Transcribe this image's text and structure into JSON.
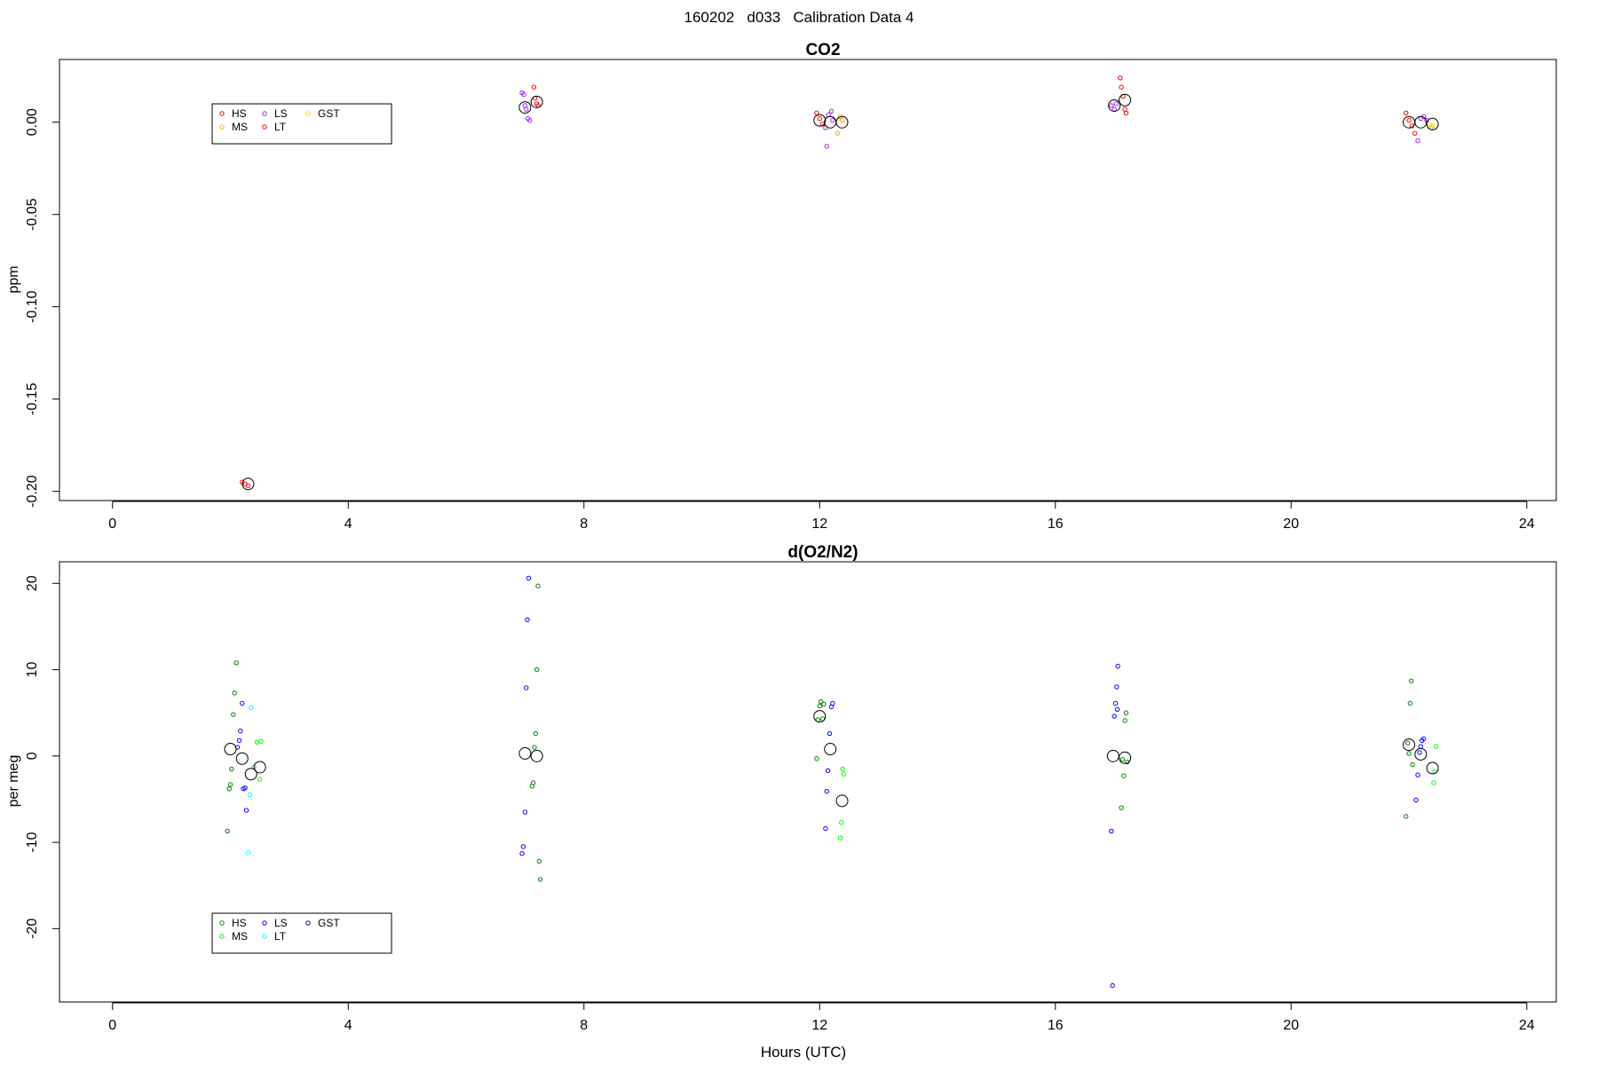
{
  "page_title": "160202   d033   Calibration Data 4",
  "xlabel": "Hours (UTC)",
  "colors": {
    "co2": {
      "HS": "#ff0000",
      "MS": "#ffa500",
      "LS": "#a020f0",
      "LT": "#ff0000",
      "GST": "#ffd700"
    },
    "o2": {
      "HS": "#008000",
      "MS": "#00ff00",
      "LS": "#0000ff",
      "LT": "#00ffff",
      "GST": "#0000a0"
    }
  },
  "chart_data": [
    {
      "type": "scatter",
      "title": "CO2",
      "ylabel": "ppm",
      "xlabel": "",
      "xlim": [
        -0.9,
        24.5
      ],
      "ylim": [
        -0.205,
        0.034
      ],
      "xticks": [
        0,
        4,
        8,
        12,
        16,
        20,
        24
      ],
      "yticks": [
        0.0,
        -0.05,
        -0.1,
        -0.15,
        -0.2
      ],
      "ytick_labels": [
        "0.00",
        "-0.05",
        "-0.10",
        "-0.15",
        "-0.20"
      ],
      "legend": {
        "position": "top-left",
        "entries": [
          "HS",
          "MS",
          "LS",
          "LT",
          "GST"
        ]
      },
      "points": [
        {
          "series": "HS",
          "x": 2.2,
          "y": -0.195
        },
        {
          "series": "HS",
          "x": 2.25,
          "y": -0.196
        },
        {
          "series": "HS",
          "x": 2.3,
          "y": -0.197
        },
        {
          "series": "LS",
          "x": 6.95,
          "y": 0.016
        },
        {
          "series": "LS",
          "x": 6.98,
          "y": 0.015
        },
        {
          "series": "LS",
          "x": 7.0,
          "y": 0.009
        },
        {
          "series": "LS",
          "x": 7.02,
          "y": 0.007
        },
        {
          "series": "LS",
          "x": 7.05,
          "y": 0.002
        },
        {
          "series": "LS",
          "x": 7.08,
          "y": 0.001
        },
        {
          "series": "HS",
          "x": 7.15,
          "y": 0.019
        },
        {
          "series": "HS",
          "x": 7.17,
          "y": 0.013
        },
        {
          "series": "HS",
          "x": 7.2,
          "y": 0.01
        },
        {
          "series": "HS",
          "x": 7.22,
          "y": 0.009
        },
        {
          "series": "HS",
          "x": 11.95,
          "y": 0.005
        },
        {
          "series": "HS",
          "x": 12.0,
          "y": 0.002
        },
        {
          "series": "HS",
          "x": 12.05,
          "y": -0.001
        },
        {
          "series": "LS",
          "x": 12.1,
          "y": -0.003
        },
        {
          "series": "LS",
          "x": 12.12,
          "y": -0.013
        },
        {
          "series": "LS",
          "x": 12.15,
          "y": 0.004
        },
        {
          "series": "LS",
          "x": 12.2,
          "y": 0.006
        },
        {
          "series": "LS",
          "x": 12.22,
          "y": 0.001
        },
        {
          "series": "MS",
          "x": 12.3,
          "y": -0.006
        },
        {
          "series": "MS",
          "x": 12.35,
          "y": 0.003
        },
        {
          "series": "MS",
          "x": 12.38,
          "y": 0.001
        },
        {
          "series": "LS",
          "x": 16.95,
          "y": 0.009
        },
        {
          "series": "LS",
          "x": 17.0,
          "y": 0.007
        },
        {
          "series": "LS",
          "x": 17.03,
          "y": 0.01
        },
        {
          "series": "HS",
          "x": 17.1,
          "y": 0.024
        },
        {
          "series": "HS",
          "x": 17.12,
          "y": 0.019
        },
        {
          "series": "HS",
          "x": 17.15,
          "y": 0.014
        },
        {
          "series": "HS",
          "x": 17.18,
          "y": 0.007
        },
        {
          "series": "HS",
          "x": 17.2,
          "y": 0.005
        },
        {
          "series": "HS",
          "x": 21.95,
          "y": 0.005
        },
        {
          "series": "HS",
          "x": 22.0,
          "y": 0.001
        },
        {
          "series": "HS",
          "x": 22.05,
          "y": -0.002
        },
        {
          "series": "HS",
          "x": 22.1,
          "y": -0.006
        },
        {
          "series": "LS",
          "x": 22.15,
          "y": -0.01
        },
        {
          "series": "LS",
          "x": 22.2,
          "y": 0.002
        },
        {
          "series": "LS",
          "x": 22.25,
          "y": 0.003
        },
        {
          "series": "LS",
          "x": 22.3,
          "y": 0.001
        },
        {
          "series": "GST",
          "x": 22.35,
          "y": -0.001
        },
        {
          "series": "GST",
          "x": 22.4,
          "y": -0.002
        },
        {
          "series": "MS",
          "x": 22.38,
          "y": -0.003
        }
      ],
      "means": [
        {
          "x": 2.3,
          "y": -0.196
        },
        {
          "x": 7.0,
          "y": 0.008
        },
        {
          "x": 7.2,
          "y": 0.011
        },
        {
          "x": 12.0,
          "y": 0.001
        },
        {
          "x": 12.18,
          "y": 0.0
        },
        {
          "x": 12.38,
          "y": 0.0
        },
        {
          "x": 17.0,
          "y": 0.009
        },
        {
          "x": 17.18,
          "y": 0.012
        },
        {
          "x": 22.0,
          "y": 0.0
        },
        {
          "x": 22.2,
          "y": 0.0
        },
        {
          "x": 22.4,
          "y": -0.001
        }
      ]
    },
    {
      "type": "scatter",
      "title": "d(O2/N2)",
      "ylabel": "per meg",
      "xlabel": "Hours (UTC)",
      "xlim": [
        -0.9,
        24.5
      ],
      "ylim": [
        -28.5,
        22.5
      ],
      "xticks": [
        0,
        4,
        8,
        12,
        16,
        20,
        24
      ],
      "yticks": [
        20,
        10,
        0,
        -10,
        -20
      ],
      "ytick_labels": [
        "20",
        "10",
        "0",
        "-10",
        "-20"
      ],
      "legend": {
        "position": "bottom-left",
        "entries": [
          "HS",
          "MS",
          "LS",
          "LT",
          "GST"
        ]
      },
      "points": [
        {
          "series": "HS",
          "x": 1.95,
          "y": -8.7
        },
        {
          "series": "HS",
          "x": 1.98,
          "y": -3.8
        },
        {
          "series": "HS",
          "x": 2.0,
          "y": -3.3
        },
        {
          "series": "HS",
          "x": 2.02,
          "y": -1.5
        },
        {
          "series": "HS",
          "x": 2.05,
          "y": 4.8
        },
        {
          "series": "HS",
          "x": 2.07,
          "y": 7.3
        },
        {
          "series": "HS",
          "x": 2.1,
          "y": 10.8
        },
        {
          "series": "LS",
          "x": 2.12,
          "y": 1.0
        },
        {
          "series": "LS",
          "x": 2.15,
          "y": 1.8
        },
        {
          "series": "LS",
          "x": 2.17,
          "y": 2.9
        },
        {
          "series": "LS",
          "x": 2.2,
          "y": 6.1
        },
        {
          "series": "LS",
          "x": 2.22,
          "y": -3.8
        },
        {
          "series": "LS",
          "x": 2.25,
          "y": -3.7
        },
        {
          "series": "LS",
          "x": 2.27,
          "y": -6.3
        },
        {
          "series": "LT",
          "x": 2.3,
          "y": -11.2
        },
        {
          "series": "LT",
          "x": 2.33,
          "y": -4.5
        },
        {
          "series": "LT",
          "x": 2.35,
          "y": 5.6
        },
        {
          "series": "MS",
          "x": 2.4,
          "y": -1.3
        },
        {
          "series": "MS",
          "x": 2.45,
          "y": 1.6
        },
        {
          "series": "MS",
          "x": 2.5,
          "y": -2.7
        },
        {
          "series": "MS",
          "x": 2.52,
          "y": 1.7
        },
        {
          "series": "LS",
          "x": 6.95,
          "y": -11.3
        },
        {
          "series": "LS",
          "x": 6.97,
          "y": -10.5
        },
        {
          "series": "LS",
          "x": 7.0,
          "y": -6.5
        },
        {
          "series": "LS",
          "x": 7.02,
          "y": 7.9
        },
        {
          "series": "LS",
          "x": 7.04,
          "y": 15.8
        },
        {
          "series": "LS",
          "x": 7.06,
          "y": 20.6
        },
        {
          "series": "HS",
          "x": 7.12,
          "y": -3.5
        },
        {
          "series": "HS",
          "x": 7.14,
          "y": -3.1
        },
        {
          "series": "HS",
          "x": 7.16,
          "y": 1.0
        },
        {
          "series": "HS",
          "x": 7.18,
          "y": 2.6
        },
        {
          "series": "HS",
          "x": 7.2,
          "y": 10.0
        },
        {
          "series": "HS",
          "x": 7.22,
          "y": 19.7
        },
        {
          "series": "HS",
          "x": 7.24,
          "y": -12.2
        },
        {
          "series": "HS",
          "x": 7.26,
          "y": -14.3
        },
        {
          "series": "HS",
          "x": 11.95,
          "y": -0.3
        },
        {
          "series": "HS",
          "x": 11.97,
          "y": 4.2
        },
        {
          "series": "HS",
          "x": 12.0,
          "y": 5.8
        },
        {
          "series": "HS",
          "x": 12.02,
          "y": 6.3
        },
        {
          "series": "HS",
          "x": 12.05,
          "y": 4.3
        },
        {
          "series": "HS",
          "x": 12.07,
          "y": 6.0
        },
        {
          "series": "LS",
          "x": 12.1,
          "y": -8.4
        },
        {
          "series": "LS",
          "x": 12.12,
          "y": -4.1
        },
        {
          "series": "LS",
          "x": 12.14,
          "y": -1.7
        },
        {
          "series": "LS",
          "x": 12.17,
          "y": 2.6
        },
        {
          "series": "LS",
          "x": 12.2,
          "y": 5.7
        },
        {
          "series": "LS",
          "x": 12.22,
          "y": 6.1
        },
        {
          "series": "MS",
          "x": 12.35,
          "y": -9.5
        },
        {
          "series": "MS",
          "x": 12.37,
          "y": -7.7
        },
        {
          "series": "MS",
          "x": 12.39,
          "y": -1.5
        },
        {
          "series": "MS",
          "x": 12.41,
          "y": -2.1
        },
        {
          "series": "LS",
          "x": 16.95,
          "y": -8.7
        },
        {
          "series": "LS",
          "x": 16.97,
          "y": -26.6
        },
        {
          "series": "LS",
          "x": 17.0,
          "y": 4.6
        },
        {
          "series": "LS",
          "x": 17.02,
          "y": 6.1
        },
        {
          "series": "LS",
          "x": 17.04,
          "y": 8.0
        },
        {
          "series": "LS",
          "x": 17.06,
          "y": 10.4
        },
        {
          "series": "LS",
          "x": 17.05,
          "y": 5.4
        },
        {
          "series": "HS",
          "x": 17.12,
          "y": -6.0
        },
        {
          "series": "HS",
          "x": 17.14,
          "y": -0.4
        },
        {
          "series": "HS",
          "x": 17.16,
          "y": -2.3
        },
        {
          "series": "HS",
          "x": 17.18,
          "y": 4.1
        },
        {
          "series": "HS",
          "x": 17.2,
          "y": 5.0
        },
        {
          "series": "HS",
          "x": 17.22,
          "y": -0.7
        },
        {
          "series": "HS",
          "x": 21.95,
          "y": -7.0
        },
        {
          "series": "HS",
          "x": 21.98,
          "y": 1.5
        },
        {
          "series": "HS",
          "x": 22.0,
          "y": 0.3
        },
        {
          "series": "HS",
          "x": 22.02,
          "y": 6.1
        },
        {
          "series": "HS",
          "x": 22.04,
          "y": 8.7
        },
        {
          "series": "HS",
          "x": 22.06,
          "y": -1.0
        },
        {
          "series": "LS",
          "x": 22.12,
          "y": -5.1
        },
        {
          "series": "LS",
          "x": 22.15,
          "y": -2.2
        },
        {
          "series": "LS",
          "x": 22.18,
          "y": 0.4
        },
        {
          "series": "LS",
          "x": 22.2,
          "y": 1.1
        },
        {
          "series": "LS",
          "x": 22.22,
          "y": 1.8
        },
        {
          "series": "LS",
          "x": 22.25,
          "y": 2.0
        },
        {
          "series": "MS",
          "x": 22.42,
          "y": -3.1
        },
        {
          "series": "MS",
          "x": 22.44,
          "y": -1.8
        },
        {
          "series": "MS",
          "x": 22.46,
          "y": 1.1
        }
      ],
      "means": [
        {
          "x": 2.0,
          "y": 0.8
        },
        {
          "x": 2.2,
          "y": -0.3
        },
        {
          "x": 2.35,
          "y": -2.1
        },
        {
          "x": 2.5,
          "y": -1.3
        },
        {
          "x": 7.0,
          "y": 0.3
        },
        {
          "x": 7.2,
          "y": 0.0
        },
        {
          "x": 12.0,
          "y": 4.6
        },
        {
          "x": 12.18,
          "y": 0.8
        },
        {
          "x": 12.38,
          "y": -5.2
        },
        {
          "x": 16.98,
          "y": 0.0
        },
        {
          "x": 17.18,
          "y": -0.2
        },
        {
          "x": 22.0,
          "y": 1.3
        },
        {
          "x": 22.2,
          "y": 0.2
        },
        {
          "x": 22.4,
          "y": -1.4
        }
      ]
    }
  ]
}
